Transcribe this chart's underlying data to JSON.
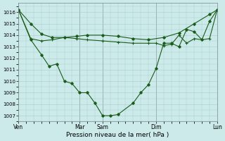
{
  "bg_color": "#cceaea",
  "grid_color": "#aacccc",
  "line_color": "#1a5c1a",
  "marker_color": "#1a5c1a",
  "xlabel": "Pression niveau de la mer( hPa )",
  "ylim": [
    1006.5,
    1016.8
  ],
  "yticks": [
    1007,
    1008,
    1009,
    1010,
    1011,
    1012,
    1013,
    1014,
    1015,
    1016
  ],
  "xtick_labels": [
    "Ven",
    "Mar",
    "Sam",
    "Dim",
    "Lun"
  ],
  "xtick_positions": [
    0,
    4,
    5.5,
    9,
    13
  ],
  "vlines": [
    0,
    4,
    5.5,
    9,
    13
  ],
  "line1_x": [
    0,
    0.8,
    1.5,
    2.2,
    3.0,
    3.8,
    4.5,
    5.5,
    6.5,
    7.5,
    8.5,
    9.5,
    10.5,
    11.5,
    12.5,
    13
  ],
  "line1_y": [
    1016.2,
    1015.0,
    1014.1,
    1013.8,
    1013.8,
    1013.9,
    1014.0,
    1014.0,
    1013.9,
    1013.7,
    1013.6,
    1013.8,
    1014.2,
    1015.0,
    1015.8,
    1016.2
  ],
  "line2_x": [
    0,
    0.8,
    1.5,
    2.2,
    3.0,
    3.8,
    4.5,
    5.5,
    6.5,
    7.5,
    8.5,
    9.0,
    9.5,
    10.0,
    10.5,
    11.0,
    11.5,
    12.0,
    12.5,
    13
  ],
  "line2_y": [
    1016.2,
    1013.7,
    1013.5,
    1013.6,
    1013.8,
    1013.7,
    1013.6,
    1013.5,
    1013.4,
    1013.3,
    1013.3,
    1013.3,
    1013.1,
    1013.2,
    1014.0,
    1013.3,
    1013.7,
    1013.6,
    1013.7,
    1016.2
  ],
  "line3_x": [
    0,
    0.8,
    1.5,
    2.0,
    2.5,
    3.0,
    3.5,
    4.0,
    4.5,
    5.0,
    5.5,
    6.0,
    6.5,
    7.5,
    8.0,
    8.5,
    9.0,
    9.5,
    10.0,
    10.5,
    11.0,
    11.5,
    12.0,
    12.5,
    13
  ],
  "line3_y": [
    1016.2,
    1013.6,
    1012.3,
    1011.3,
    1011.5,
    1010.0,
    1009.8,
    1009.0,
    1009.0,
    1008.1,
    1007.0,
    1007.0,
    1007.1,
    1008.1,
    1009.0,
    1009.7,
    1011.1,
    1013.3,
    1013.3,
    1013.0,
    1014.5,
    1014.3,
    1013.6,
    1015.2,
    1016.2
  ]
}
